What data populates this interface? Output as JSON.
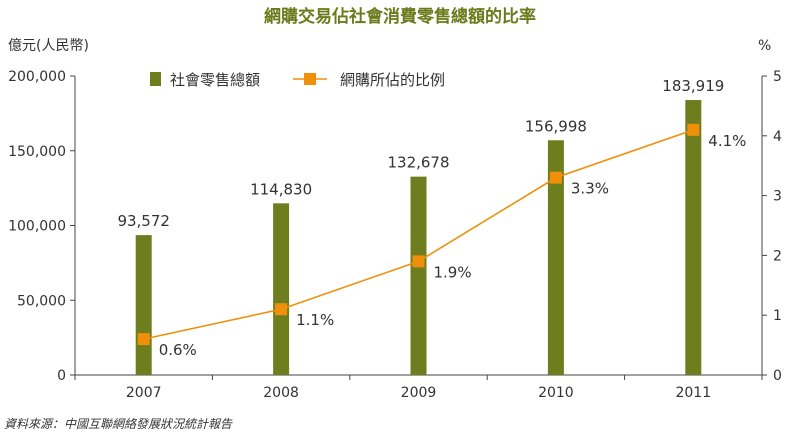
{
  "chart_data": {
    "type": "bar+line",
    "title": "網購交易佔社會消費零售總額的比率",
    "categories": [
      "2007",
      "2008",
      "2009",
      "2010",
      "2011"
    ],
    "series": [
      {
        "name": "社會零售總額",
        "type": "bar",
        "axis": "left",
        "values": [
          93572,
          114830,
          132678,
          156998,
          183919
        ],
        "labels": [
          "93,572",
          "114,830",
          "132,678",
          "156,998",
          "183,919"
        ]
      },
      {
        "name": "網購所佔的比例",
        "type": "line",
        "axis": "right",
        "values": [
          0.6,
          1.1,
          1.9,
          3.3,
          4.1
        ],
        "labels": [
          "0.6%",
          "1.1%",
          "1.9%",
          "3.3%",
          "4.1%"
        ]
      }
    ],
    "y_left": {
      "label": "億元(人民幣)",
      "ylim": [
        0,
        200000
      ],
      "ticks": [
        0,
        50000,
        100000,
        150000,
        200000
      ],
      "tick_labels": [
        "0",
        "50,000",
        "100,000",
        "150,000",
        "200,000"
      ]
    },
    "y_right": {
      "label": "%",
      "ylim": [
        0,
        5
      ],
      "ticks": [
        0,
        1,
        2,
        3,
        4,
        5
      ],
      "tick_labels": [
        "0",
        "1",
        "2",
        "3",
        "4",
        "5"
      ]
    },
    "legend_position": "top-left",
    "grid": false,
    "source": "資料來源：中國互聯網絡發展狀況統計報告"
  },
  "colors": {
    "title": "#6b7a1a",
    "bar": "#6e7d1e",
    "line": "#f0900a",
    "axis": "#444444",
    "text": "#333333"
  }
}
